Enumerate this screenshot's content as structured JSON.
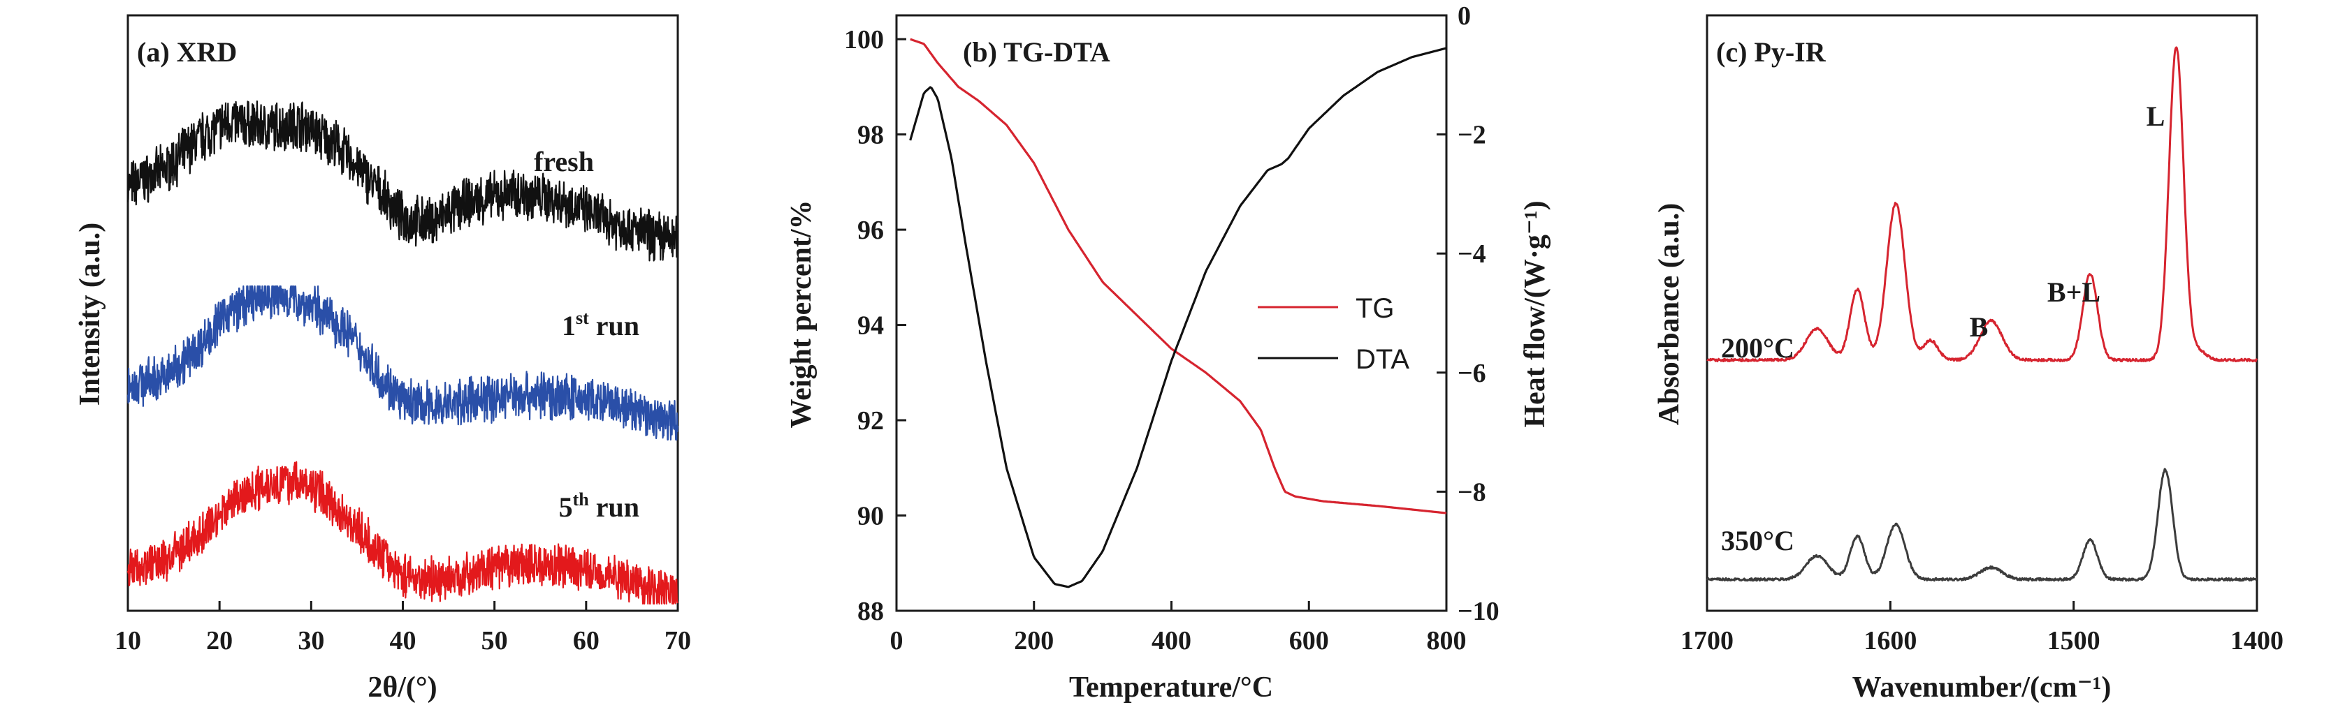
{
  "chart_data": [
    {
      "type": "line",
      "title": "(a) XRD",
      "xlabel": "2θ/(°)",
      "ylabel": "Intensity (a.u.)",
      "xlim": [
        10,
        70
      ],
      "xticks": [
        10,
        20,
        30,
        40,
        50,
        60,
        70
      ],
      "y_ticks_shown": false,
      "series": [
        {
          "name": "fresh",
          "name_main": "fresh",
          "name_sup": "",
          "name_tail": "",
          "color": "#111111",
          "x": [
            10,
            14,
            18,
            21,
            25,
            29,
            33,
            37,
            40,
            43,
            47,
            52,
            57,
            62,
            66,
            70
          ],
          "y": [
            0.48,
            0.58,
            0.78,
            0.88,
            0.84,
            0.86,
            0.72,
            0.48,
            0.28,
            0.26,
            0.38,
            0.44,
            0.4,
            0.28,
            0.2,
            0.15
          ]
        },
        {
          "name": "1st run",
          "name_main": "1",
          "name_sup": "st",
          "name_tail": " run",
          "color": "#2a4fa8",
          "x": [
            10,
            14,
            18,
            21,
            25,
            28,
            31,
            34,
            37,
            40,
            44,
            48,
            53,
            58,
            63,
            67,
            70
          ],
          "y": [
            0.36,
            0.4,
            0.62,
            0.84,
            0.94,
            0.92,
            0.84,
            0.7,
            0.45,
            0.24,
            0.22,
            0.26,
            0.3,
            0.28,
            0.22,
            0.15,
            0.12
          ]
        },
        {
          "name": "5th run",
          "name_main": "5",
          "name_sup": "th",
          "name_tail": " run",
          "color": "#e3191c",
          "x": [
            10,
            14,
            18,
            21,
            25,
            28,
            31,
            34,
            37,
            40,
            44,
            48,
            53,
            58,
            63,
            67,
            70
          ],
          "y": [
            0.24,
            0.3,
            0.48,
            0.7,
            0.84,
            0.86,
            0.78,
            0.6,
            0.38,
            0.2,
            0.16,
            0.22,
            0.28,
            0.26,
            0.2,
            0.12,
            0.08
          ]
        }
      ]
    },
    {
      "type": "line",
      "title": "(b) TG-DTA",
      "xlabel": "Temperature/°C",
      "ylabel": "Weight percent/%",
      "ylabel2": "Heat flow/(W·g⁻¹)",
      "xlim": [
        0,
        800
      ],
      "ylim": [
        88,
        100.5
      ],
      "ylim2": [
        -10,
        0
      ],
      "xticks": [
        0,
        200,
        400,
        600,
        800
      ],
      "yticks": [
        88,
        90,
        92,
        94,
        96,
        98,
        100
      ],
      "yticks2": [
        0,
        -2,
        -4,
        -6,
        -8,
        -10
      ],
      "ytick2_labels": [
        "0",
        "−2",
        "−4",
        "−6",
        "−8",
        "−10"
      ],
      "legend": "center-right",
      "series": [
        {
          "name": "TG",
          "axis": "left",
          "color": "#d6242f",
          "x": [
            20,
            40,
            60,
            90,
            120,
            160,
            200,
            250,
            300,
            350,
            400,
            450,
            500,
            530,
            550,
            565,
            580,
            620,
            700,
            800
          ],
          "y": [
            100.0,
            99.9,
            99.5,
            99.0,
            98.7,
            98.2,
            97.4,
            96.0,
            94.9,
            94.2,
            93.5,
            93.0,
            92.4,
            91.8,
            91.0,
            90.5,
            90.4,
            90.3,
            90.2,
            90.05
          ]
        },
        {
          "name": "DTA",
          "axis": "right",
          "color": "#111111",
          "x": [
            20,
            30,
            40,
            50,
            60,
            80,
            100,
            130,
            160,
            200,
            230,
            250,
            270,
            300,
            350,
            400,
            450,
            500,
            540,
            560,
            570,
            600,
            650,
            700,
            750,
            800
          ],
          "y": [
            -2.1,
            -1.7,
            -1.3,
            -1.2,
            -1.4,
            -2.4,
            -3.8,
            -5.8,
            -7.6,
            -9.1,
            -9.55,
            -9.6,
            -9.5,
            -9.0,
            -7.6,
            -5.8,
            -4.3,
            -3.2,
            -2.6,
            -2.5,
            -2.4,
            -1.9,
            -1.35,
            -0.95,
            -0.7,
            -0.55
          ]
        }
      ]
    },
    {
      "type": "line",
      "title": "(c) Py-IR",
      "xlabel": "Wavenumber/(cm⁻¹)",
      "ylabel": "Absorbance (a.u.)",
      "xlim": [
        1700,
        1400
      ],
      "xticks": [
        1700,
        1600,
        1500,
        1400
      ],
      "y_ticks_shown": false,
      "annotations": [
        {
          "text": "L",
          "x": 1445
        },
        {
          "text": "B+L",
          "x": 1491
        },
        {
          "text": "B",
          "x": 1540
        }
      ],
      "series": [
        {
          "name": "200°C",
          "color": "#d6242f",
          "baseline": 0.28,
          "peaks": [
            [
              1640,
              0.04,
              6
            ],
            [
              1618,
              0.09,
              4
            ],
            [
              1597,
              0.2,
              5
            ],
            [
              1578,
              0.025,
              4
            ],
            [
              1545,
              0.05,
              6
            ],
            [
              1491,
              0.11,
              4
            ],
            [
              1444,
              0.4,
              4
            ],
            [
              1432,
              0.012,
              4
            ]
          ]
        },
        {
          "name": "350°C",
          "color": "#3c3c3c",
          "baseline": 0.0,
          "peaks": [
            [
              1640,
              0.03,
              6
            ],
            [
              1618,
              0.055,
              4
            ],
            [
              1597,
              0.07,
              5
            ],
            [
              1545,
              0.015,
              6
            ],
            [
              1491,
              0.05,
              4
            ],
            [
              1450,
              0.14,
              4
            ]
          ]
        }
      ]
    }
  ]
}
